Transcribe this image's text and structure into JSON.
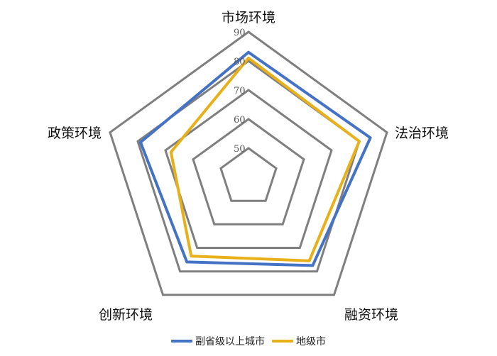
{
  "chart_data": {
    "type": "radar",
    "axes": [
      "市场环境",
      "法治环境",
      "融资环境",
      "创新环境",
      "政策环境"
    ],
    "ticks": [
      "50",
      "60",
      "70",
      "80",
      "90"
    ],
    "range": [
      40,
      90
    ],
    "grid": true,
    "legend_position": "bottom",
    "series": [
      {
        "name": "副省级以上城市",
        "color": "#4472C4",
        "values": [
          83,
          84,
          77.5,
          76,
          79
        ]
      },
      {
        "name": "地级市",
        "color": "#E8B11A",
        "values": [
          81,
          80,
          75.5,
          73.5,
          68
        ]
      }
    ]
  }
}
